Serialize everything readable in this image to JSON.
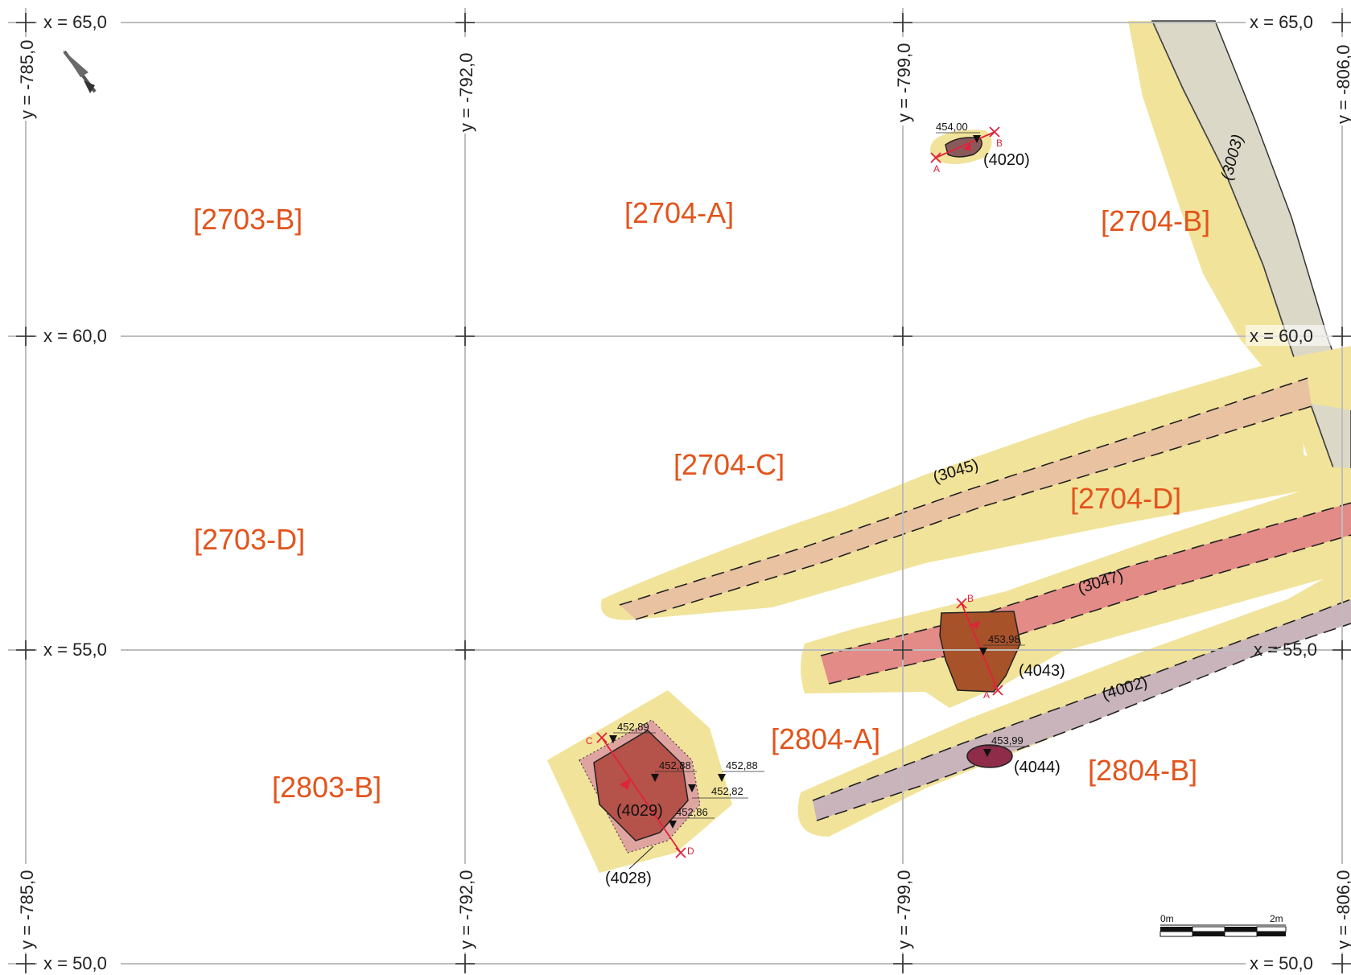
{
  "grid": {
    "x_labels": {
      "x65_left": "x = 65,0",
      "x65_right": "x = 65,0",
      "x60_left": "x = 60,0",
      "x60_right": "x = 60,0",
      "x55_left": "x = 55,0",
      "x55_right": "x = 55,0",
      "x50_left": "x = 50,0",
      "x50_right": "x = 50,0"
    },
    "y_labels": {
      "y785_top": "y = -785,0",
      "y785_bottom": "y = -785,0",
      "y792_top": "y = -792,0",
      "y792_bottom": "y = -792,0",
      "y799_top": "y = -799,0",
      "y799_bottom": "y = -799,0",
      "y806_top": "y = -806,0",
      "y806_bottom": "y = -806,0"
    }
  },
  "sectors": {
    "s2703B": "[2703-B]",
    "s2704A": "[2704-A]",
    "s2704B": "[2704-B]",
    "s2704C": "[2704-C]",
    "s2703D": "[2703-D]",
    "s2704D": "[2704-D]",
    "s2804A": "[2804-A]",
    "s2803B": "[2803-B]",
    "s2804B": "[2804-B]"
  },
  "features": {
    "f4020": "(4020)",
    "f3003": "(3003)",
    "f3045": "(3045)",
    "f3047": "(3047)",
    "f4043": "(4043)",
    "f4002": "(4002)",
    "f4044": "(4044)",
    "f4029": "(4029)",
    "f4028": "(4028)"
  },
  "elevations": {
    "e454_00": "454,00",
    "e453_98": "453,98",
    "e453_99": "453,99",
    "e452_89": "452,89",
    "e452_88a": "452,88",
    "e452_88b": "452,88",
    "e452_82": "452,82",
    "e452_86": "452,86"
  },
  "section_letters": {
    "a1": "A",
    "b1": "B",
    "a2": "A",
    "b2": "B",
    "c": "C",
    "d": "D"
  },
  "scale_bar": {
    "start": "0m",
    "end": "2m"
  },
  "colors": {
    "halo": "#f1e39a",
    "trench_3003": "#dcd8c8",
    "trench_3045": "#e9c2a2",
    "trench_3047": "#e38b87",
    "trench_4002": "#c9b4bc",
    "pit_4043": "#a8522a",
    "pit_4029": "#b5524a",
    "pit_4044": "#8f2c4a",
    "sector_label": "#e2541c",
    "section_line": "#e0233a"
  }
}
